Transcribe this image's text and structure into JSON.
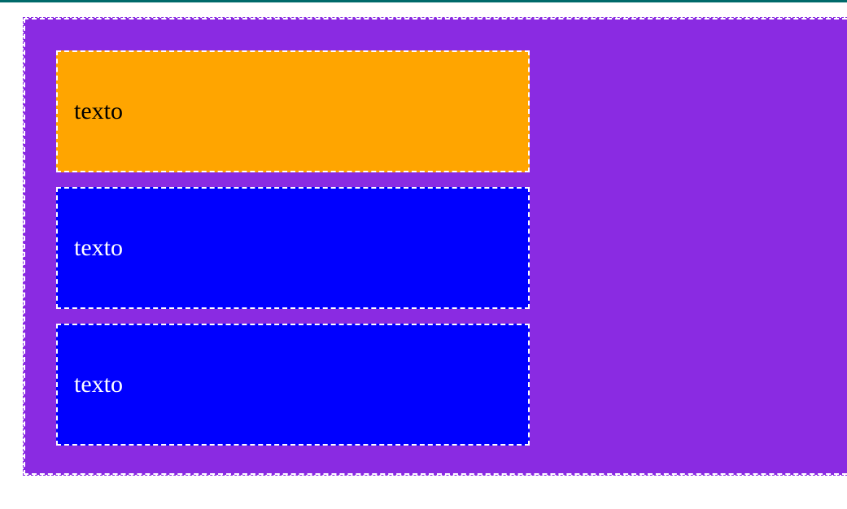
{
  "colors": {
    "top_bar": "#006a6a",
    "container_background": "#8a2be2",
    "box_border": "#ffffff"
  },
  "boxes": [
    {
      "label": "texto",
      "background": "#ffa500",
      "text_color": "#000000"
    },
    {
      "label": "texto",
      "background": "#0000ff",
      "text_color": "#ffffff"
    },
    {
      "label": "texto",
      "background": "#0000ff",
      "text_color": "#ffffff"
    }
  ]
}
